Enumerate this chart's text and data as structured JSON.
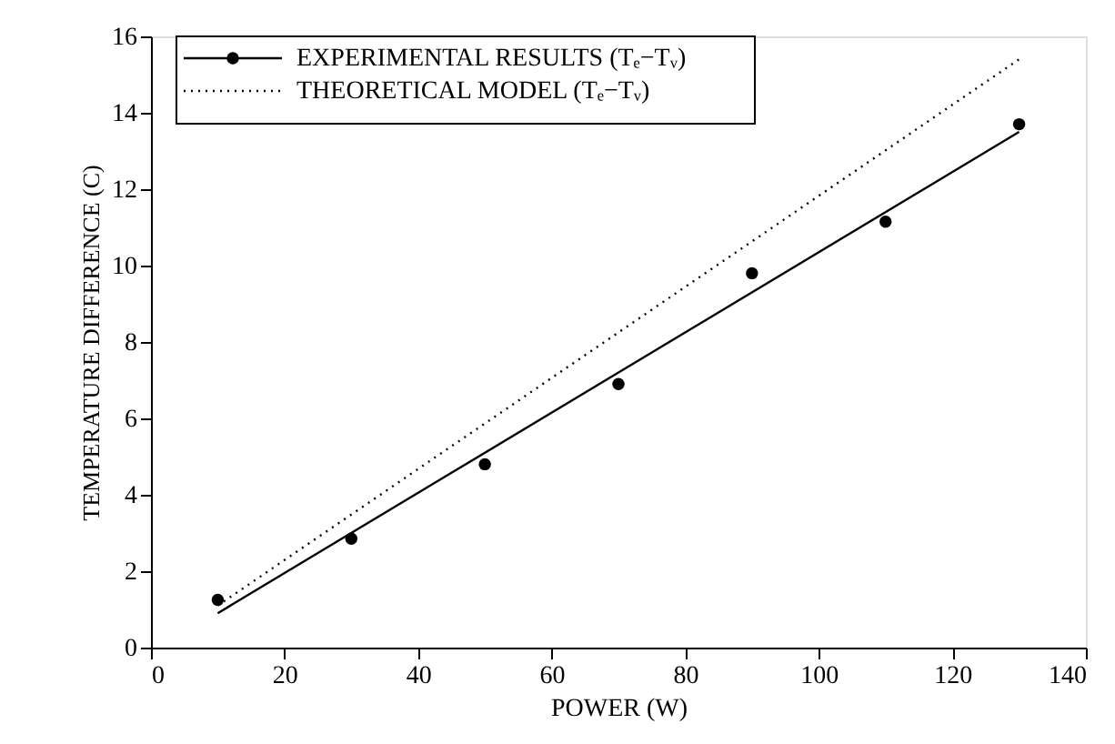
{
  "chart_data": {
    "type": "scatter",
    "xlabel": "POWER (W)",
    "ylabel": "TEMPERATURE DIFFERENCE (C)",
    "xlim": [
      0,
      140
    ],
    "xticks": [
      0,
      20,
      40,
      60,
      80,
      100,
      120,
      140
    ],
    "ylim": [
      0,
      16
    ],
    "yticks": [
      0,
      2,
      4,
      6,
      8,
      10,
      12,
      14,
      16
    ],
    "grid": false,
    "legend": "top left",
    "series": [
      {
        "name": "EXPERIMENTAL RESULTS (Tₑ−Tᵥ)",
        "color": "#000000",
        "marker": "circle",
        "line_style": "solid",
        "x": [
          10,
          30,
          50,
          70,
          90,
          110,
          130
        ],
        "values": [
          1.25,
          2.85,
          4.8,
          6.9,
          9.8,
          11.15,
          13.7
        ]
      },
      {
        "name": "THEORETICAL MODEL (Tₑ−Tᵥ)",
        "type": "line",
        "color": "#000000",
        "marker": "none",
        "line_style": "dotted",
        "x": [
          10,
          130
        ],
        "values": [
          1.1,
          15.4
        ]
      },
      {
        "type": "line",
        "color": "#000000",
        "marker": "none",
        "line_style": "solid",
        "x": [
          10,
          130
        ],
        "values": [
          0.9,
          13.5
        ]
      }
    ]
  }
}
